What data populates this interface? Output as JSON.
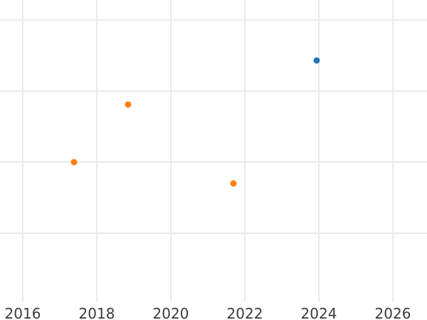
{
  "chart_data": {
    "type": "scatter",
    "title": "",
    "xlabel": "",
    "ylabel": "",
    "x_tick_labels": [
      "2016",
      "2018",
      "2020",
      "2022",
      "2024",
      "2026"
    ],
    "x_ticks": [
      2016,
      2018,
      2020,
      2022,
      2024,
      2026
    ],
    "xlim": [
      2015.38,
      2026.92
    ],
    "ylim": [
      -0.22,
      4.28
    ],
    "y_gridline_values": [
      1,
      2,
      3,
      4
    ],
    "y_tick_labels_visible": false,
    "grid": true,
    "legend_position": "none",
    "marker_diameter_px": 9,
    "series": [
      {
        "name": "orange-series",
        "color": "#ff7f0e",
        "marker": "circle",
        "points": [
          {
            "x": 2017.39,
            "y": 2.0
          },
          {
            "x": 2018.84,
            "y": 2.81
          },
          {
            "x": 2021.7,
            "y": 1.7
          }
        ]
      },
      {
        "name": "blue-series",
        "color": "#1f77b4",
        "marker": "circle",
        "points": [
          {
            "x": 2023.94,
            "y": 3.43
          }
        ]
      }
    ]
  },
  "colors": {
    "background": "#ffffff",
    "gridline": "#ebebeb",
    "tick_label": "#3b3b3b"
  }
}
